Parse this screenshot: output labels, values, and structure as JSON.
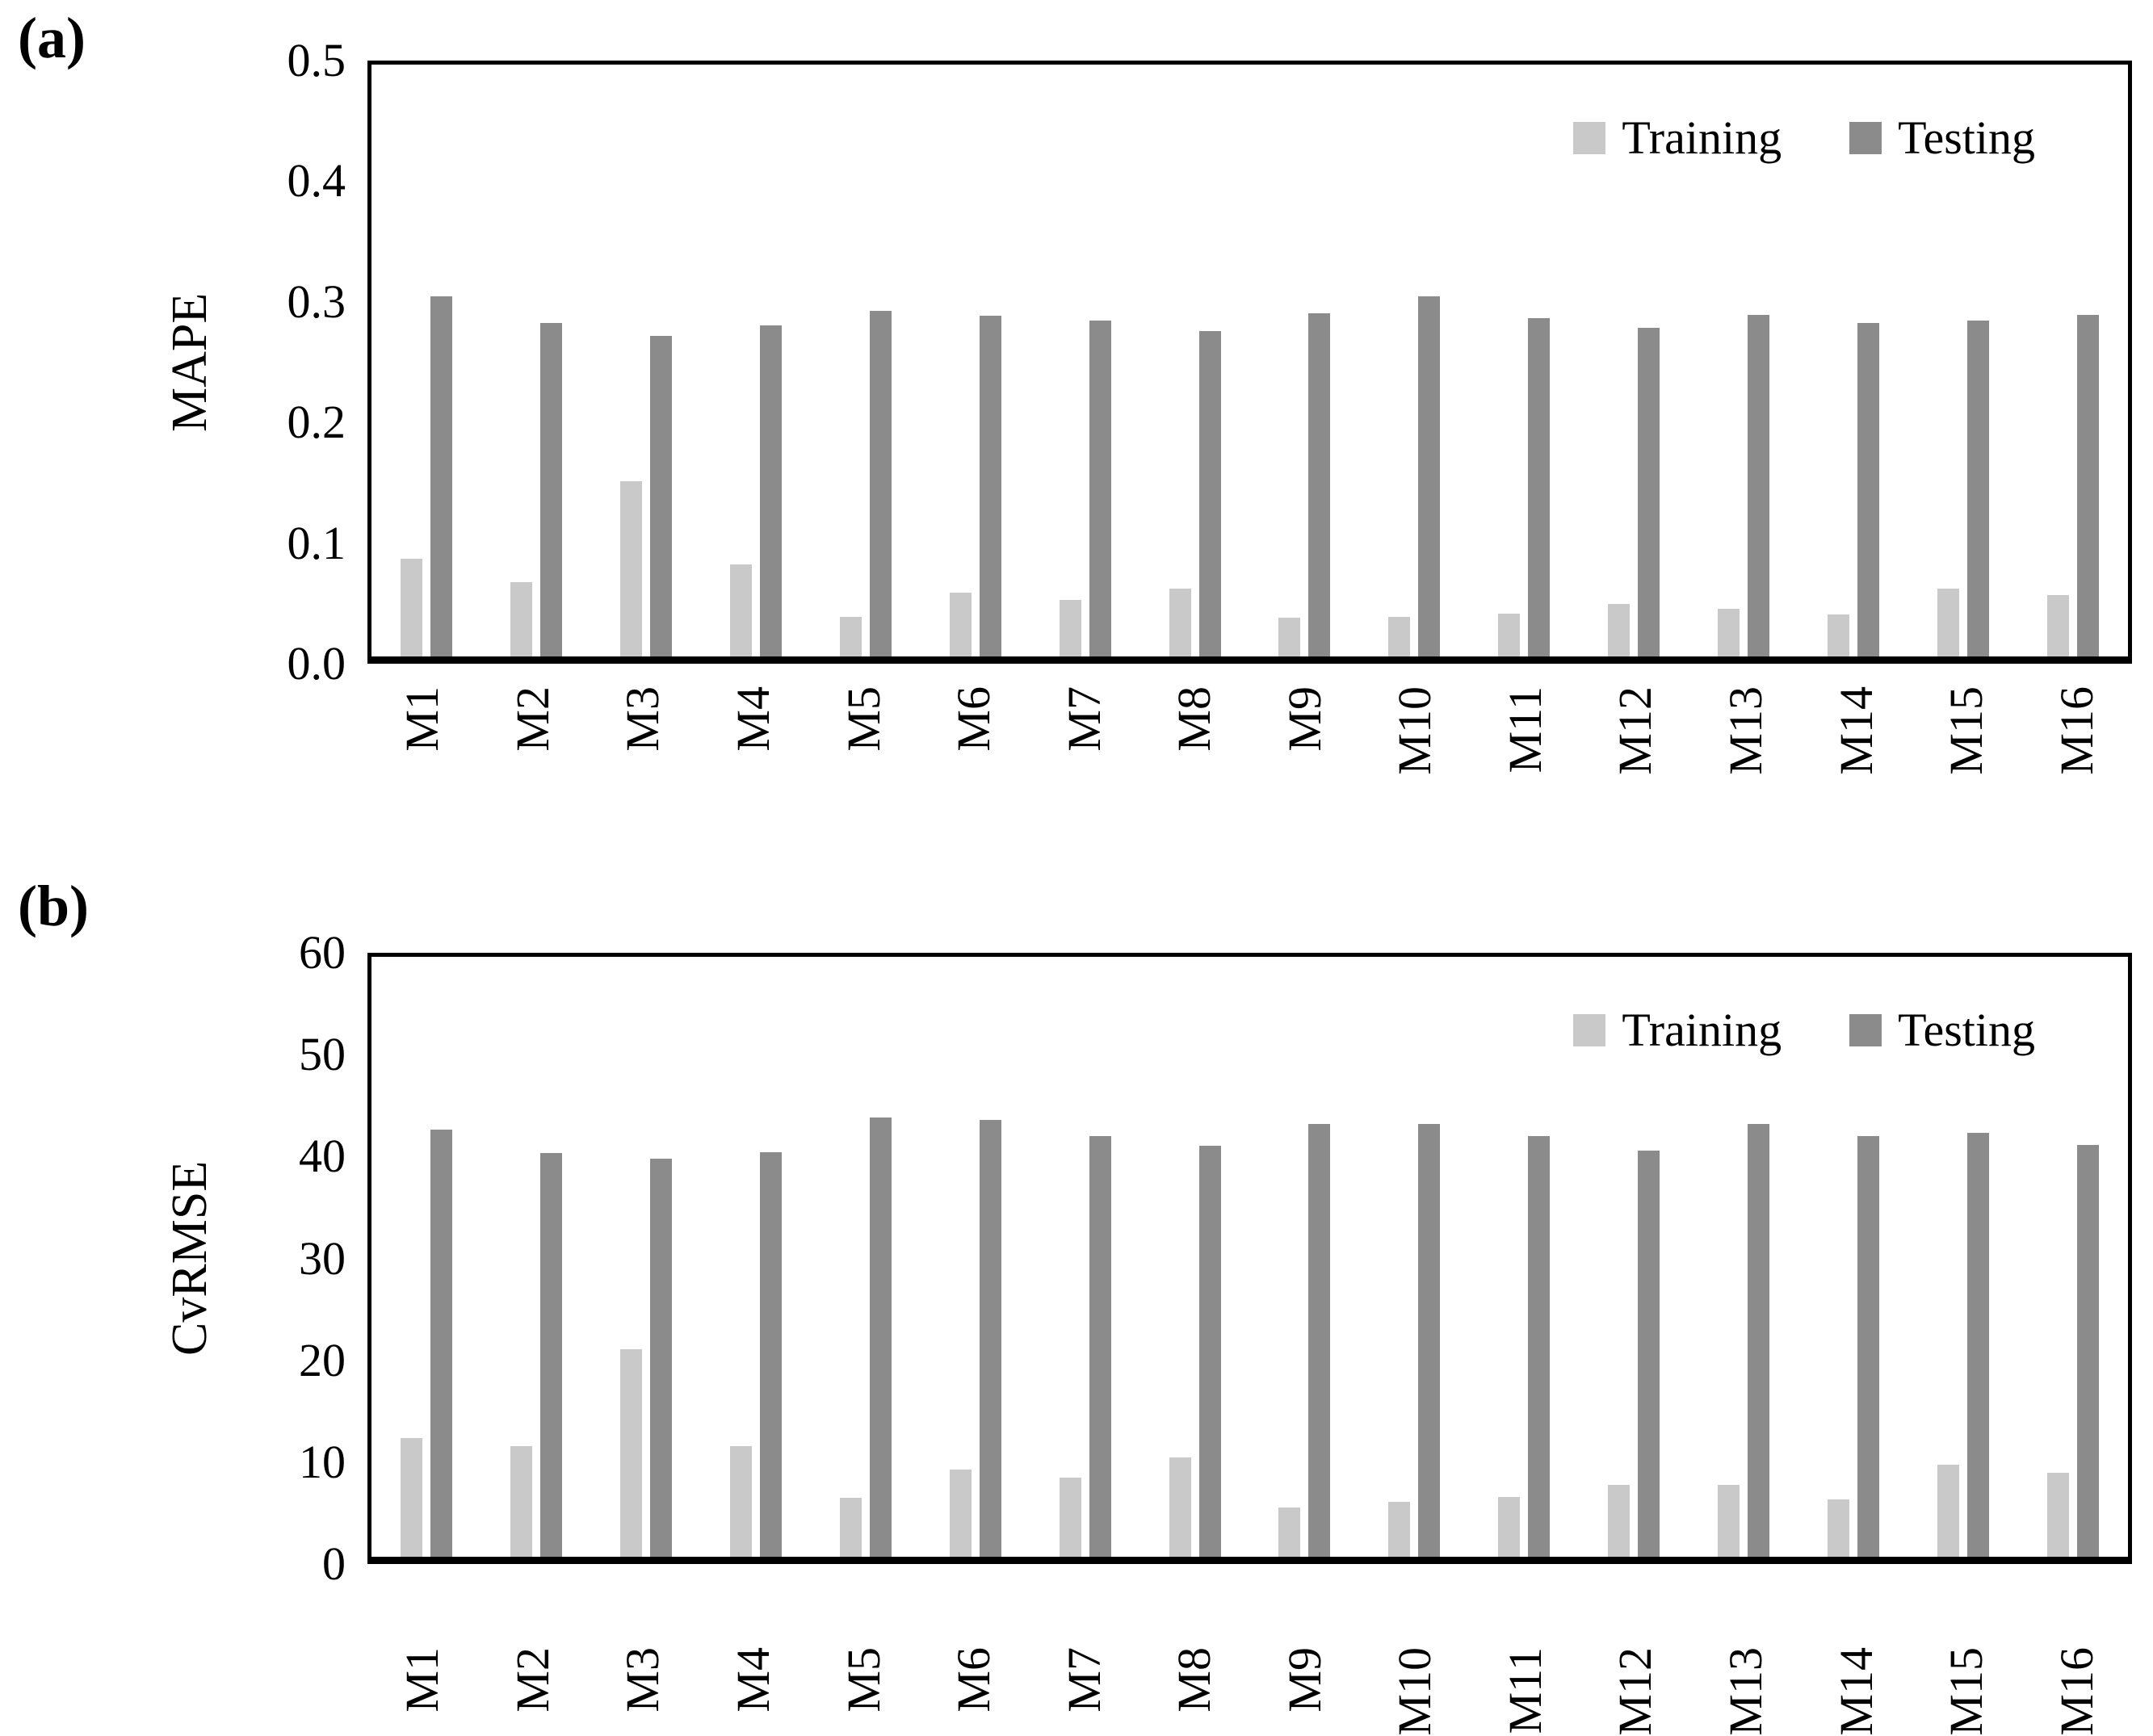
{
  "figure_type": "two-panel bar chart figure",
  "colors": {
    "training_bar": "#c9c9c9",
    "testing_bar": "#8b8b8b",
    "axis": "#000000",
    "background": "#ffffff"
  },
  "chart_data": [
    {
      "type": "bar",
      "panel_label": "(a)",
      "ylabel": "MAPE",
      "xlabel": "",
      "categories": [
        "M1",
        "M2",
        "M3",
        "M4",
        "M5",
        "M6",
        "M7",
        "M8",
        "M9",
        "M10",
        "M11",
        "M12",
        "M13",
        "M14",
        "M15",
        "M16"
      ],
      "series": [
        {
          "name": "Training",
          "values": [
            0.085,
            0.065,
            0.15,
            0.08,
            0.036,
            0.056,
            0.05,
            0.06,
            0.035,
            0.036,
            0.039,
            0.047,
            0.043,
            0.038,
            0.06,
            0.054
          ]
        },
        {
          "name": "Testing",
          "values": [
            0.305,
            0.283,
            0.272,
            0.281,
            0.293,
            0.289,
            0.285,
            0.276,
            0.291,
            0.305,
            0.287,
            0.279,
            0.29,
            0.283,
            0.285,
            0.29
          ]
        }
      ],
      "ylim": [
        0,
        0.5
      ],
      "yticks": [
        0.0,
        0.1,
        0.2,
        0.3,
        0.4,
        0.5
      ],
      "ytick_decimals": 1,
      "grid": false,
      "legend_position": "top-right inside plot"
    },
    {
      "type": "bar",
      "panel_label": "(b)",
      "ylabel": "CvRMSE",
      "xlabel": "",
      "categories": [
        "M1",
        "M2",
        "M3",
        "M4",
        "M5",
        "M6",
        "M7",
        "M8",
        "M9",
        "M10",
        "M11",
        "M12",
        "M13",
        "M14",
        "M15",
        "M16"
      ],
      "series": [
        {
          "name": "Training",
          "values": [
            12.1,
            11.3,
            21.0,
            11.3,
            6.2,
            9.0,
            8.2,
            10.2,
            5.2,
            5.8,
            6.3,
            7.5,
            7.5,
            6.0,
            9.5,
            8.7
          ]
        },
        {
          "name": "Testing",
          "values": [
            42.8,
            40.5,
            39.9,
            40.6,
            44.0,
            43.8,
            42.2,
            41.2,
            43.4,
            43.4,
            42.2,
            40.7,
            43.4,
            42.2,
            42.5,
            41.3
          ]
        }
      ],
      "ylim": [
        0,
        60
      ],
      "yticks": [
        0,
        10,
        20,
        30,
        40,
        50,
        60
      ],
      "ytick_decimals": 0,
      "grid": false,
      "legend_position": "top-right inside plot"
    }
  ]
}
